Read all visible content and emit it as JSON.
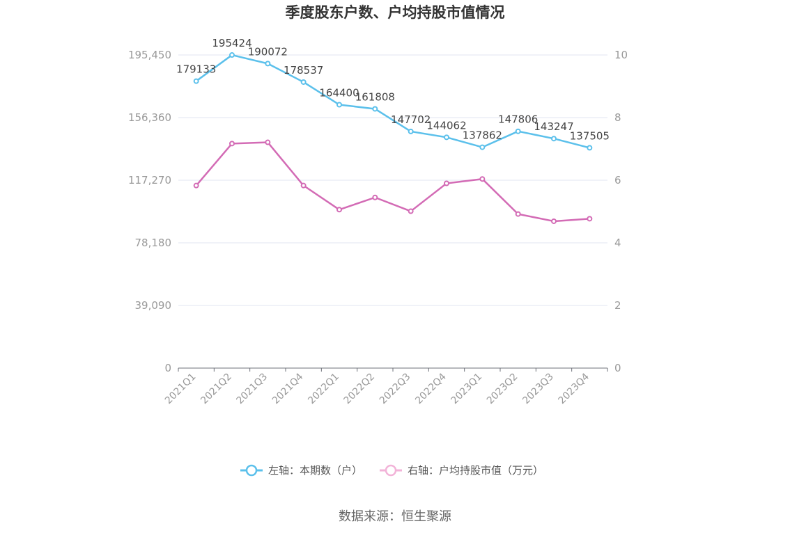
{
  "chart_data": {
    "type": "line",
    "title": "季度股东户数、户均持股市值情况",
    "categories": [
      "2021Q1",
      "2021Q2",
      "2021Q3",
      "2021Q4",
      "2022Q1",
      "2022Q2",
      "2022Q3",
      "2022Q4",
      "2023Q1",
      "2023Q2",
      "2023Q3",
      "2023Q4"
    ],
    "series": [
      {
        "name": "左轴：本期数（户）",
        "axis": "left",
        "color": "#5bc0eb",
        "values": [
          179133,
          195424,
          190072,
          178537,
          164400,
          161808,
          147702,
          144062,
          137862,
          147806,
          143247,
          137505
        ],
        "labels": [
          "179133",
          "195424",
          "190072",
          "178537",
          "164400",
          "161808",
          "147702",
          "144062",
          "137862",
          "147806",
          "143247",
          "137505"
        ]
      },
      {
        "name": "右轴：户均持股市值（万元）",
        "axis": "right",
        "color": "#d36bb5",
        "legend_color": "#f2b3d8",
        "values": [
          5.83,
          7.17,
          7.21,
          5.83,
          5.06,
          5.45,
          5.01,
          5.9,
          6.04,
          4.92,
          4.69,
          4.77
        ]
      }
    ],
    "left_axis": {
      "min": 0,
      "max": 195450,
      "ticks": [
        0,
        39090,
        78180,
        117270,
        156360,
        195450
      ],
      "tick_labels": [
        "0",
        "39,090",
        "78,180",
        "117,270",
        "156,360",
        "195,450"
      ]
    },
    "right_axis": {
      "min": 0,
      "max": 10,
      "ticks": [
        0,
        2,
        4,
        6,
        8,
        10
      ],
      "tick_labels": [
        "0",
        "2",
        "4",
        "6",
        "8",
        "10"
      ]
    },
    "grid": true,
    "legend_position": "bottom"
  },
  "source_text": "数据来源：恒生聚源"
}
